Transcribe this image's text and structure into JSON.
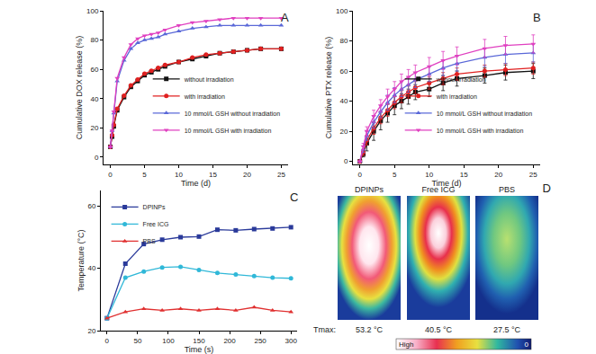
{
  "chart_data": [
    {
      "type": "line",
      "label": "A",
      "x_label": "Time (d)",
      "y_label": "Cumulative DOX release (%)",
      "xlim": [
        -1,
        26
      ],
      "xticks": [
        0,
        5,
        10,
        15,
        20,
        25
      ],
      "ylim": [
        -5,
        100
      ],
      "yticks": [
        0,
        20,
        40,
        60,
        80,
        100
      ],
      "grid": false,
      "legend": "lower right",
      "x": [
        0,
        0.25,
        0.5,
        1,
        2,
        3,
        4,
        5,
        6,
        7,
        8,
        10,
        12,
        14,
        16,
        18,
        20,
        22,
        25
      ],
      "series": [
        {
          "name": "without irradiation",
          "color": "#111111",
          "marker": "square",
          "values": [
            7,
            14,
            21,
            32,
            41,
            48,
            52,
            56,
            58,
            60,
            62,
            65,
            67,
            69,
            71,
            72,
            73,
            74,
            74
          ]
        },
        {
          "name": "with irradiation",
          "color": "#e02020",
          "marker": "circle",
          "values": [
            7,
            15,
            22,
            33,
            42,
            49,
            53,
            57,
            59,
            61,
            63,
            65,
            68,
            70,
            71,
            72,
            73,
            74,
            74
          ]
        },
        {
          "name": "10 mmol/L GSH without irradiation",
          "color": "#5a68d8",
          "marker": "triangle-up",
          "values": [
            7,
            18,
            30,
            52,
            66,
            74,
            78,
            80,
            81,
            82,
            84,
            86,
            88,
            89,
            90,
            90,
            90,
            90,
            90
          ]
        },
        {
          "name": "10 mmol/L GSH with irradiation",
          "color": "#e040c0",
          "marker": "triangle-down",
          "values": [
            7,
            18,
            31,
            54,
            68,
            77,
            81,
            83,
            84,
            85,
            87,
            90,
            92,
            93,
            94,
            95,
            95,
            95,
            95
          ]
        }
      ]
    },
    {
      "type": "line",
      "label": "B",
      "x_label": "Time (d)",
      "y_label": "Cumulative PTX release (%)",
      "xlim": [
        -1,
        26
      ],
      "xticks": [
        0,
        5,
        10,
        15,
        20,
        25
      ],
      "ylim": [
        -2,
        100
      ],
      "yticks": [
        0,
        20,
        40,
        60,
        80,
        100
      ],
      "grid": false,
      "legend": "lower right",
      "x": [
        0,
        0.5,
        1,
        2,
        3,
        4,
        5,
        6,
        7,
        8,
        10,
        12,
        14,
        18,
        21,
        25
      ],
      "series": [
        {
          "name": "without irradiation",
          "color": "#111111",
          "marker": "square",
          "values": [
            0,
            5,
            12,
            20,
            27,
            32,
            37,
            40,
            43,
            46,
            48,
            52,
            55,
            57,
            59,
            60
          ],
          "errors": [
            0,
            2,
            5,
            6,
            6,
            6,
            6,
            5,
            5,
            5,
            5,
            5,
            5,
            5,
            5,
            5
          ]
        },
        {
          "name": "with irradiation",
          "color": "#e02020",
          "marker": "circle",
          "values": [
            0,
            6,
            14,
            22,
            29,
            34,
            39,
            43,
            46,
            49,
            52,
            55,
            58,
            60,
            61,
            62
          ],
          "errors": [
            0,
            2,
            3,
            4,
            4,
            4,
            4,
            4,
            4,
            4,
            4,
            4,
            4,
            4,
            4,
            4
          ]
        },
        {
          "name": "10 mmol/L GSH without irradiation",
          "color": "#5a68d8",
          "marker": "triangle-up",
          "values": [
            0,
            8,
            17,
            26,
            33,
            39,
            44,
            48,
            51,
            54,
            58,
            62,
            65,
            69,
            71,
            72
          ],
          "errors": [
            0,
            2,
            3,
            4,
            4,
            5,
            5,
            5,
            5,
            5,
            5,
            5,
            5,
            6,
            6,
            6
          ]
        },
        {
          "name": "10 mmol/L GSH with irradiation",
          "color": "#e040c0",
          "marker": "triangle-down",
          "values": [
            0,
            10,
            20,
            30,
            37,
            43,
            48,
            53,
            56,
            59,
            63,
            67,
            70,
            75,
            77,
            78
          ],
          "errors": [
            0,
            2,
            3,
            4,
            4,
            5,
            5,
            5,
            5,
            5,
            6,
            6,
            6,
            6,
            6,
            6
          ]
        }
      ]
    },
    {
      "type": "line",
      "label": "C",
      "x_label": "Time (s)",
      "y_label": "Temperature (°C)",
      "xlim": [
        -10,
        310
      ],
      "xticks": [
        0,
        50,
        100,
        150,
        200,
        250,
        300
      ],
      "ylim": [
        20,
        65
      ],
      "yticks": [
        20,
        40,
        60
      ],
      "grid": false,
      "legend": "upper left",
      "x": [
        0,
        30,
        60,
        90,
        120,
        150,
        180,
        210,
        240,
        270,
        300
      ],
      "series": [
        {
          "name": "DPINPs",
          "color": "#2a3a9a",
          "marker": "square",
          "values": [
            24,
            41.5,
            47.8,
            49.2,
            50,
            50.2,
            52.4,
            52.2,
            52.6,
            52.8,
            53.2
          ]
        },
        {
          "name": "Free ICG",
          "color": "#30b8d8",
          "marker": "circle",
          "values": [
            24,
            37,
            39,
            40.3,
            40.5,
            39.5,
            38.5,
            38,
            37.5,
            37,
            36.8
          ]
        },
        {
          "name": "PBS",
          "color": "#e03030",
          "marker": "triangle-up",
          "values": [
            24,
            26,
            27,
            26.5,
            27,
            26.5,
            27,
            26.5,
            27.5,
            26.5,
            26
          ]
        }
      ]
    }
  ],
  "panel_d": {
    "label": "D",
    "tmax_label": "Tmax:",
    "images": [
      {
        "name": "DPINPs",
        "tmax": "53.2 °C"
      },
      {
        "name": "Free ICG",
        "tmax": "40.5 °C"
      },
      {
        "name": "PBS",
        "tmax": "27.5 °C"
      }
    ],
    "colorbar_labels": [
      "High",
      "0"
    ]
  }
}
